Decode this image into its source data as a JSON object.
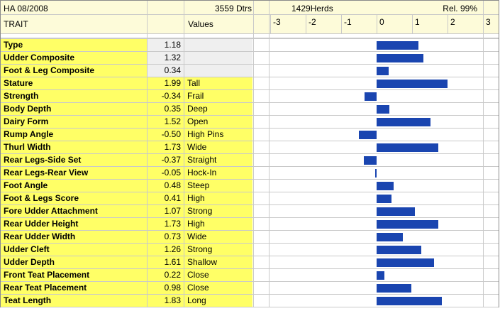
{
  "header": {
    "title": "HA 08/2008",
    "daughters": "3559 Dtrs",
    "herds": "1429Herds",
    "reliability": "Rel. 99%",
    "trait_label": "TRAIT",
    "values_label": "Values"
  },
  "axis": {
    "ticks": [
      "-3",
      "-2",
      "-1",
      "0",
      "1",
      "2",
      "3"
    ],
    "min": -3,
    "max": 3
  },
  "rows": [
    {
      "trait": "Type",
      "value": "1.18",
      "desc": "",
      "num": 1.18,
      "shade": "gray"
    },
    {
      "trait": "Udder Composite",
      "value": "1.32",
      "desc": "",
      "num": 1.32,
      "shade": "gray"
    },
    {
      "trait": "Foot & Leg Composite",
      "value": "0.34",
      "desc": "",
      "num": 0.34,
      "shade": "gray"
    },
    {
      "trait": "Stature",
      "value": "1.99",
      "desc": "Tall",
      "num": 1.99,
      "shade": "yel"
    },
    {
      "trait": "Strength",
      "value": "-0.34",
      "desc": "Frail",
      "num": -0.34,
      "shade": "yel"
    },
    {
      "trait": "Body Depth",
      "value": "0.35",
      "desc": "Deep",
      "num": 0.35,
      "shade": "yel"
    },
    {
      "trait": "Dairy Form",
      "value": "1.52",
      "desc": "Open",
      "num": 1.52,
      "shade": "yel"
    },
    {
      "trait": "Rump Angle",
      "value": "-0.50",
      "desc": "High Pins",
      "num": -0.5,
      "shade": "yel"
    },
    {
      "trait": "Thurl Width",
      "value": "1.73",
      "desc": "Wide",
      "num": 1.73,
      "shade": "yel"
    },
    {
      "trait": "Rear Legs-Side Set",
      "value": "-0.37",
      "desc": "Straight",
      "num": -0.37,
      "shade": "yel"
    },
    {
      "trait": "Rear Legs-Rear View",
      "value": "-0.05",
      "desc": "Hock-In",
      "num": -0.05,
      "shade": "yel"
    },
    {
      "trait": "Foot Angle",
      "value": "0.48",
      "desc": "Steep",
      "num": 0.48,
      "shade": "yel"
    },
    {
      "trait": "Foot & Legs Score",
      "value": "0.41",
      "desc": "High",
      "num": 0.41,
      "shade": "yel"
    },
    {
      "trait": "Fore Udder Attachment",
      "value": "1.07",
      "desc": "Strong",
      "num": 1.07,
      "shade": "yel"
    },
    {
      "trait": "Rear Udder Height",
      "value": "1.73",
      "desc": "High",
      "num": 1.73,
      "shade": "yel"
    },
    {
      "trait": "Rear Udder Width",
      "value": "0.73",
      "desc": "Wide",
      "num": 0.73,
      "shade": "yel"
    },
    {
      "trait": "Udder Cleft",
      "value": "1.26",
      "desc": "Strong",
      "num": 1.26,
      "shade": "yel"
    },
    {
      "trait": "Udder Depth",
      "value": "1.61",
      "desc": "Shallow",
      "num": 1.61,
      "shade": "yel"
    },
    {
      "trait": "Front Teat Placement",
      "value": "0.22",
      "desc": "Close",
      "num": 0.22,
      "shade": "yel"
    },
    {
      "trait": "Rear Teat Placement",
      "value": "0.98",
      "desc": "Close",
      "num": 0.98,
      "shade": "yel"
    },
    {
      "trait": "Teat Length",
      "value": "1.83",
      "desc": "Long",
      "num": 1.83,
      "shade": "yel"
    }
  ],
  "colors": {
    "bar": "#1a45b0",
    "trait_bg": "#ffff66",
    "header_bg": "#fdfbd9"
  }
}
